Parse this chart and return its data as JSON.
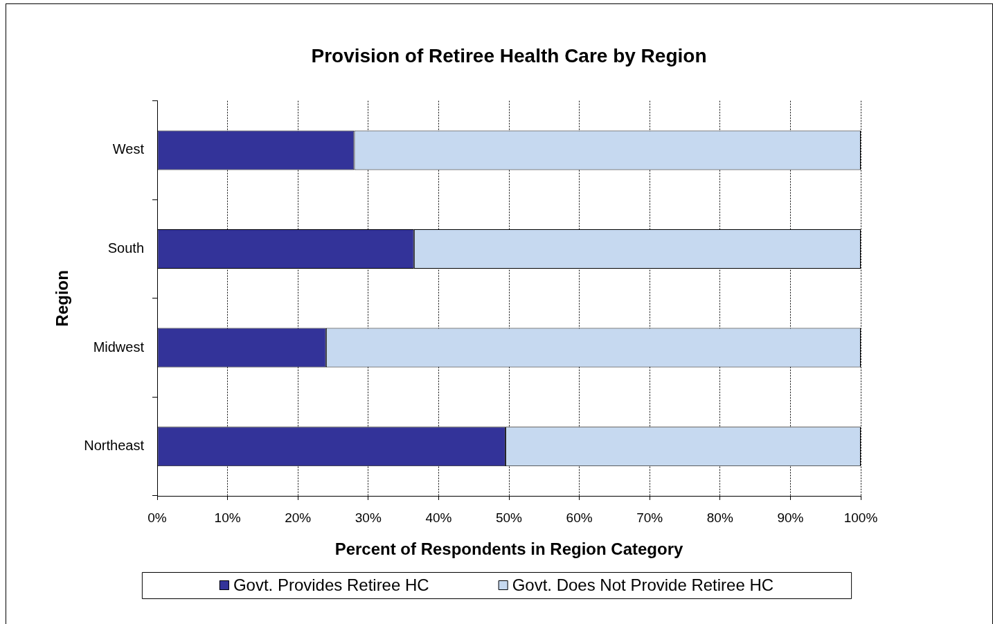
{
  "chart_data": {
    "type": "bar",
    "title": "Provision of Retiree Health Care by Region",
    "xlabel": "Percent of Respondents in Region Category",
    "ylabel": "Region",
    "categories": [
      "West",
      "South",
      "Midwest",
      "Northeast"
    ],
    "orientation": "horizontal",
    "stacked": true,
    "series": [
      {
        "name": "Govt. Provides Retiree HC",
        "color": "#333399",
        "values": [
          28,
          36.5,
          24,
          49.5
        ]
      },
      {
        "name": "Govt. Does Not Provide Retiree HC",
        "color": "#c6d9f0",
        "values": [
          72,
          63.5,
          76,
          50.5
        ]
      }
    ],
    "xlim": [
      0,
      100
    ],
    "xticks": [
      {
        "value": 0,
        "label": "0%"
      },
      {
        "value": 10,
        "label": "10%"
      },
      {
        "value": 20,
        "label": "20%"
      },
      {
        "value": 30,
        "label": "30%"
      },
      {
        "value": 40,
        "label": "40%"
      },
      {
        "value": 50,
        "label": "50%"
      },
      {
        "value": 60,
        "label": "60%"
      },
      {
        "value": 70,
        "label": "70%"
      },
      {
        "value": 80,
        "label": "80%"
      },
      {
        "value": 90,
        "label": "90%"
      },
      {
        "value": 100,
        "label": "100%"
      }
    ],
    "grid": "x",
    "legend": "bottom"
  }
}
